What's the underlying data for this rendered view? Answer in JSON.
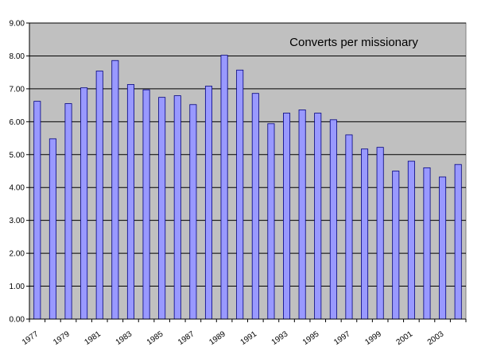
{
  "chart_data": {
    "type": "bar",
    "title": "Converts per missionary",
    "xlabel": "",
    "ylabel": "",
    "categories": [
      "1977",
      "1978",
      "1979",
      "1980",
      "1981",
      "1982",
      "1983",
      "1984",
      "1985",
      "1986",
      "1987",
      "1988",
      "1989",
      "1990",
      "1991",
      "1992",
      "1993",
      "1994",
      "1995",
      "1996",
      "1997",
      "1998",
      "1999",
      "2000",
      "2001",
      "2002",
      "2003",
      "2004"
    ],
    "x_tick_labels_shown": [
      "1977",
      "1979",
      "1981",
      "1983",
      "1985",
      "1987",
      "1989",
      "1991",
      "1993",
      "1995",
      "1997",
      "1999",
      "2001",
      "2003"
    ],
    "values": [
      6.62,
      5.48,
      6.55,
      7.03,
      7.54,
      7.86,
      7.13,
      6.97,
      6.74,
      6.79,
      6.52,
      7.08,
      8.02,
      7.57,
      6.86,
      5.94,
      6.26,
      6.36,
      6.26,
      6.06,
      5.6,
      5.17,
      5.22,
      4.5,
      4.8,
      4.6,
      4.32,
      4.7
    ],
    "ylim": [
      0,
      9
    ],
    "yticks": [
      0,
      1,
      2,
      3,
      4,
      5,
      6,
      7,
      8,
      9
    ],
    "ytick_labels": [
      "0.00",
      "1.00",
      "2.00",
      "3.00",
      "4.00",
      "5.00",
      "6.00",
      "7.00",
      "8.00",
      "9.00"
    ],
    "grid": "horizontal",
    "legend": "none",
    "colors": {
      "bar_fill": "#9999ff",
      "bar_stroke": "#000080",
      "plot_background": "#c0c0c0",
      "gridline": "#000000"
    }
  }
}
